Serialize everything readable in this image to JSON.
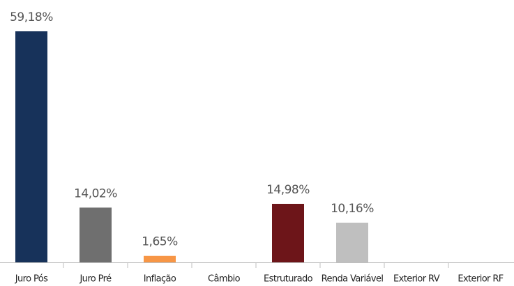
{
  "chart_data": {
    "type": "bar",
    "categories": [
      "Juro Pós",
      "Juro Pré",
      "Inflação",
      "Câmbio",
      "Estruturado",
      "Renda Variável",
      "Exterior RV",
      "Exterior RF"
    ],
    "values": [
      59.18,
      14.02,
      1.65,
      null,
      14.98,
      10.16,
      null,
      null
    ],
    "value_labels": [
      "59,18%",
      "14,02%",
      "1,65%",
      null,
      "14,98%",
      "10,16%",
      null,
      null
    ],
    "colors": [
      "#17325a",
      "#6f6f6f",
      "#f79646",
      null,
      "#6d1519",
      "#bfbfbf",
      null,
      null
    ]
  }
}
